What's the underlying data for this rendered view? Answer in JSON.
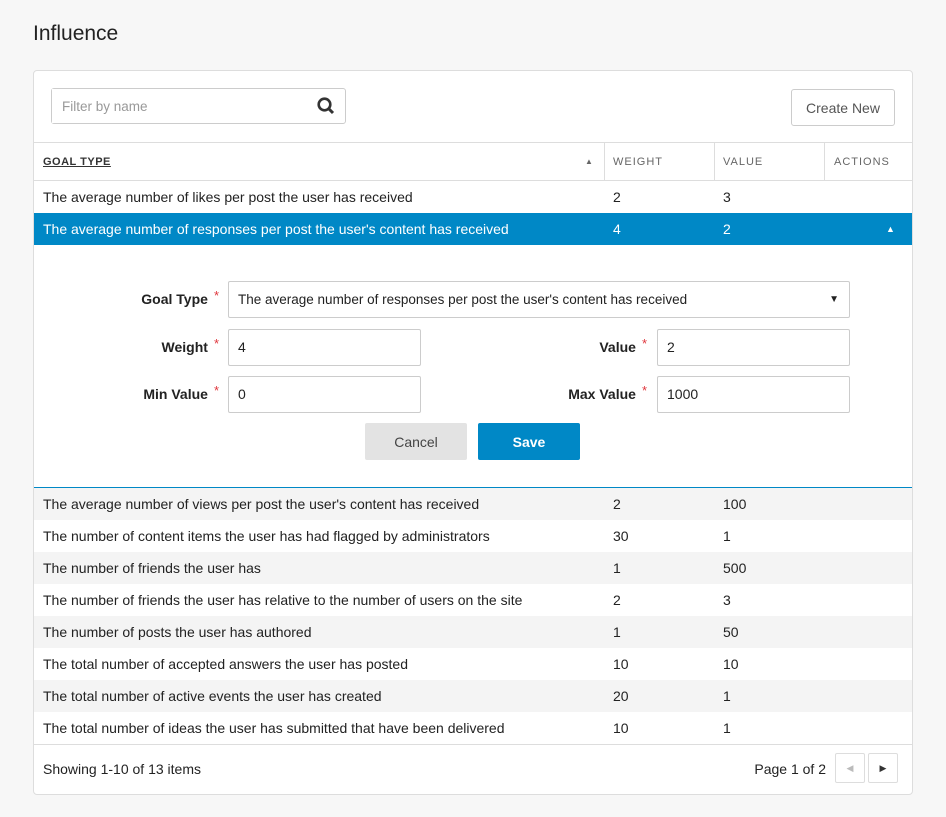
{
  "page": {
    "title": "Influence"
  },
  "toolbar": {
    "search_placeholder": "Filter by name",
    "search_value": "",
    "create_label": "Create New"
  },
  "columns": [
    "GOAL TYPE",
    "WEIGHT",
    "VALUE",
    "ACTIONS"
  ],
  "rows_before": [
    {
      "goal": "The average number of likes per post the user has received",
      "weight": "2",
      "value": "3"
    }
  ],
  "selected": {
    "goal": "The average number of responses per post the user's content has received",
    "weight": "4",
    "value": "2"
  },
  "form": {
    "goal_type_label": "Goal Type",
    "goal_type_value": "The average number of responses per post the user's content has received",
    "weight_label": "Weight",
    "weight_value": "4",
    "value_label": "Value",
    "value_value": "2",
    "min_label": "Min Value",
    "min_value": "0",
    "max_label": "Max Value",
    "max_value": "1000",
    "required_mark": "*",
    "cancel_label": "Cancel",
    "save_label": "Save"
  },
  "rows_after": [
    {
      "goal": "The average number of views per post the user's content has received",
      "weight": "2",
      "value": "100"
    },
    {
      "goal": "The number of content items the user has had flagged by administrators",
      "weight": "30",
      "value": "1"
    },
    {
      "goal": "The number of friends the user has",
      "weight": "1",
      "value": "500"
    },
    {
      "goal": "The number of friends the user has relative to the number of users on the site",
      "weight": "2",
      "value": "3"
    },
    {
      "goal": "The number of posts the user has authored",
      "weight": "1",
      "value": "50"
    },
    {
      "goal": "The total number of accepted answers the user has posted",
      "weight": "10",
      "value": "10"
    },
    {
      "goal": "The total number of active events the user has created",
      "weight": "20",
      "value": "1"
    },
    {
      "goal": "The total number of ideas the user has submitted that have been delivered",
      "weight": "10",
      "value": "1"
    }
  ],
  "footer": {
    "showing": "Showing 1-10 of 13 items",
    "page": "Page 1 of 2"
  },
  "colors": {
    "accent": "#0088c6",
    "required": "#e0363c"
  }
}
